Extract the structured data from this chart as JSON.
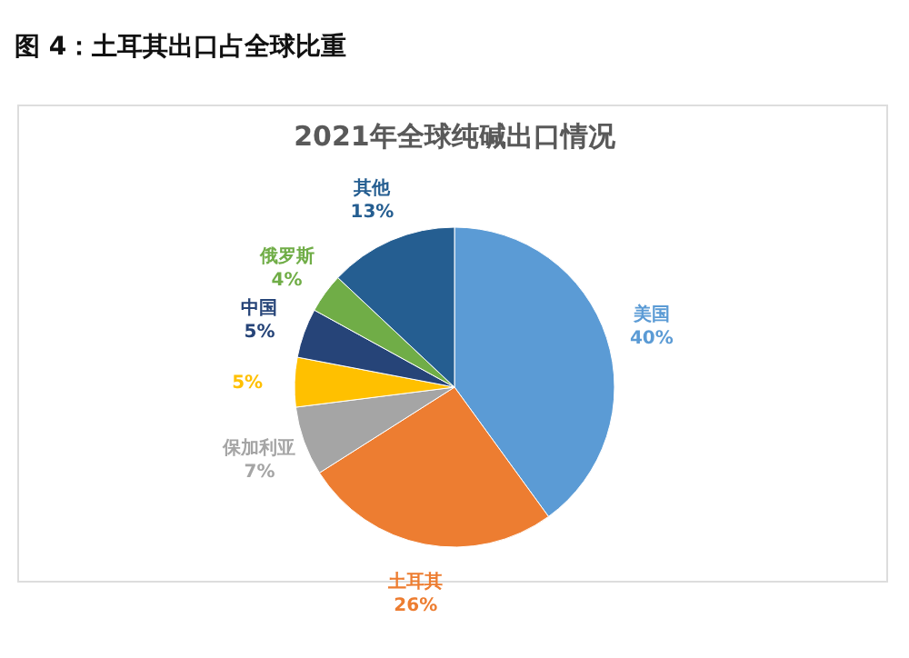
{
  "chart_data": {
    "type": "pie",
    "title": "图 4：土耳其出口占全球比重",
    "subtitle": "2021年全球纯碱出口情况",
    "categories": [
      "美国",
      "土耳其",
      "保加利亚",
      null,
      "中国",
      "俄罗斯",
      "其他"
    ],
    "values": [
      40,
      26,
      7,
      5,
      5,
      4,
      13
    ],
    "value_labels": [
      "40%",
      "26%",
      "7%",
      "5%",
      "5%",
      "4%",
      "13%"
    ],
    "colors": [
      "#5b9bd5",
      "#ed7d31",
      "#a5a5a5",
      "#ffc000",
      "#264478",
      "#70ad47",
      "#255e91"
    ]
  }
}
